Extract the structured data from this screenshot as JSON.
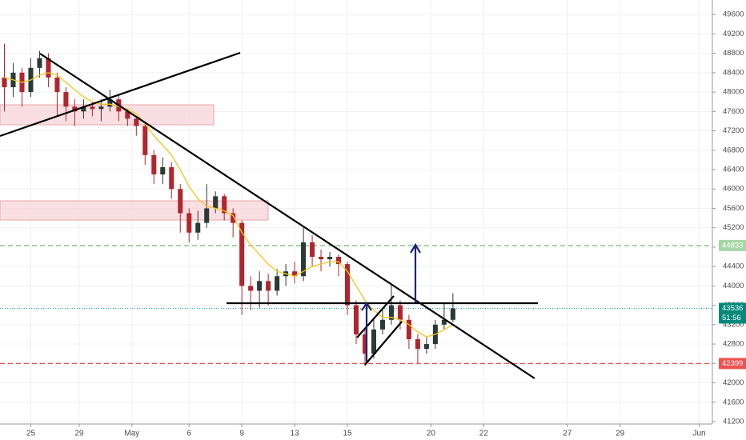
{
  "chart_data": {
    "type": "candlestick",
    "x": [
      1,
      3,
      5,
      7,
      9,
      11,
      13,
      15,
      17,
      19,
      21,
      23,
      25,
      27,
      29,
      31,
      33,
      35,
      37,
      39,
      41,
      43,
      45,
      47,
      49,
      51,
      53,
      55,
      57,
      59,
      61,
      63,
      65,
      67,
      69,
      71,
      73,
      75,
      77,
      79,
      81,
      83,
      85,
      87,
      89,
      91,
      93,
      95,
      97,
      99,
      101,
      103
    ],
    "open": [
      48300,
      48100,
      48400,
      48000,
      48500,
      48700,
      48300,
      48000,
      47700,
      47600,
      47700,
      47650,
      47700,
      47850,
      47600,
      47450,
      47300,
      46700,
      46300,
      46450,
      46000,
      45500,
      45100,
      45300,
      45600,
      45850,
      45500,
      45300,
      44000,
      43900,
      44100,
      43900,
      44200,
      44300,
      44200,
      44900,
      44600,
      44550,
      44600,
      44450,
      43600,
      43000,
      42600,
      43100,
      43300,
      43600,
      43300,
      42900,
      42700,
      42800,
      43200,
      43300
    ],
    "high": [
      49000,
      48600,
      48500,
      48700,
      48850,
      48800,
      48400,
      48100,
      47850,
      47850,
      47800,
      47850,
      48050,
      47950,
      47650,
      47500,
      47350,
      46800,
      46650,
      46550,
      46100,
      45600,
      45550,
      46100,
      45950,
      45900,
      45600,
      45350,
      44200,
      44300,
      44250,
      44350,
      44450,
      44500,
      45200,
      45050,
      44750,
      44700,
      44650,
      44500,
      43700,
      43100,
      43300,
      43550,
      44050,
      43700,
      43400,
      43000,
      42950,
      43300,
      43650,
      43850
    ],
    "low": [
      47600,
      47900,
      47700,
      47900,
      48300,
      48100,
      47500,
      47400,
      47300,
      47450,
      47500,
      47400,
      47600,
      47400,
      47300,
      47100,
      46500,
      46100,
      46100,
      45800,
      45100,
      44900,
      44950,
      45200,
      45500,
      45350,
      45000,
      43400,
      43500,
      43550,
      43600,
      43800,
      44000,
      44050,
      44100,
      44400,
      44300,
      44400,
      44200,
      43400,
      42800,
      42350,
      42500,
      43000,
      43200,
      43100,
      42700,
      42400,
      42600,
      42700,
      43100,
      43250
    ],
    "close": [
      48100,
      48400,
      48000,
      48500,
      48700,
      48300,
      48000,
      47700,
      47600,
      47700,
      47650,
      47700,
      47850,
      47600,
      47450,
      47300,
      46700,
      46300,
      46450,
      46000,
      45500,
      45100,
      45300,
      45600,
      45850,
      45500,
      45300,
      44000,
      43900,
      44100,
      43900,
      44200,
      44300,
      44200,
      44900,
      44600,
      44550,
      44600,
      44450,
      43600,
      43000,
      42600,
      43100,
      43300,
      43600,
      43300,
      42900,
      42700,
      42800,
      43200,
      43300,
      43536
    ],
    "up_color": "#2b3a33",
    "down_color": "#b0262e",
    "ma": {
      "color": "#f5c518",
      "values": [
        48300,
        48250,
        48200,
        48250,
        48350,
        48400,
        48350,
        48200,
        48050,
        47900,
        47800,
        47750,
        47750,
        47700,
        47650,
        47550,
        47350,
        47100,
        46900,
        46700,
        46400,
        46050,
        45800,
        45650,
        45600,
        45550,
        45450,
        45100,
        44850,
        44650,
        44450,
        44300,
        44250,
        44200,
        44300,
        44400,
        44450,
        44500,
        44500,
        44300,
        44000,
        43700,
        43500,
        43350,
        43350,
        43300,
        43200,
        43050,
        42950,
        43000,
        43100,
        43200
      ]
    },
    "xlim": [
      0,
      162
    ],
    "xticks": [
      {
        "value": 7,
        "label": "25"
      },
      {
        "value": 18,
        "label": "29"
      },
      {
        "value": 30,
        "label": "May"
      },
      {
        "value": 43,
        "label": "6"
      },
      {
        "value": 55,
        "label": "9"
      },
      {
        "value": 67,
        "label": "13"
      },
      {
        "value": 79,
        "label": "15"
      },
      {
        "value": 98,
        "label": "20"
      },
      {
        "value": 110,
        "label": "22"
      },
      {
        "value": 129,
        "label": "27"
      },
      {
        "value": 141,
        "label": "29"
      },
      {
        "value": 159,
        "label": "Jun"
      }
    ],
    "ylim": [
      41150,
      49900
    ],
    "yticks": [
      41200,
      41600,
      42000,
      42400,
      42800,
      43200,
      43600,
      44000,
      44400,
      44800,
      45200,
      45600,
      46000,
      46400,
      46800,
      47200,
      47600,
      48000,
      48400,
      48800,
      49200,
      49600
    ],
    "grid": true,
    "levels": [
      {
        "value": 44833,
        "color": "#81c784",
        "tag_color": "#a5d6a7",
        "style": "dashed"
      },
      {
        "value": 43536,
        "color": "#26a69a",
        "tag_color": "#00897b",
        "style": "dotted"
      },
      {
        "value": 42399,
        "color": "#ef5350",
        "tag_color": "#ef5350",
        "style": "dashed"
      }
    ],
    "countdown": "51:56"
  }
}
